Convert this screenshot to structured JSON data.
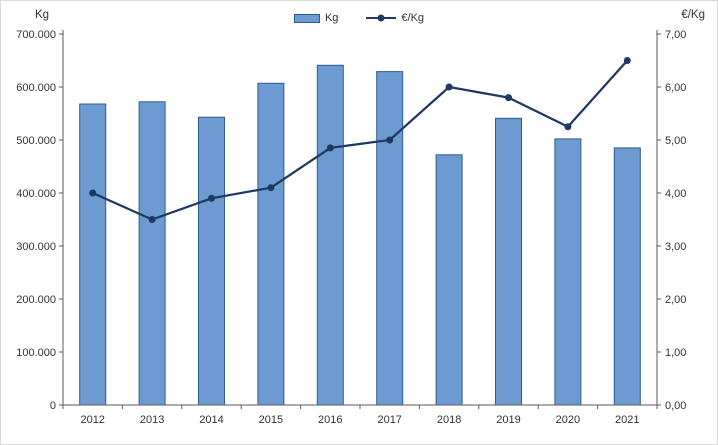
{
  "chart_data": {
    "type": "bar+line",
    "title": "",
    "categories": [
      "2012",
      "2013",
      "2014",
      "2015",
      "2016",
      "2017",
      "2018",
      "2019",
      "2020",
      "2021"
    ],
    "series": [
      {
        "name": "Kg",
        "type": "bar",
        "axis": "left",
        "values": [
          568000,
          572000,
          543000,
          607000,
          641000,
          629000,
          472000,
          541000,
          502000,
          485000
        ],
        "fill": "#6D9BD1",
        "stroke": "#2F5C8F"
      },
      {
        "name": "€/Kg",
        "type": "line",
        "axis": "right",
        "values": [
          4.0,
          3.5,
          3.9,
          4.1,
          4.85,
          5.0,
          6.0,
          5.8,
          5.25,
          6.5
        ],
        "color": "#1F3864"
      }
    ],
    "left_axis": {
      "title": "Kg",
      "min": 0,
      "max": 700000,
      "step": 100000,
      "tick_labels": [
        "0",
        "100.000",
        "200.000",
        "300.000",
        "400.000",
        "500.000",
        "600.000",
        "700.000"
      ]
    },
    "right_axis": {
      "title": "€/Kg",
      "min": 0,
      "max": 7,
      "step": 1,
      "tick_labels": [
        "0,00",
        "1,00",
        "2,00",
        "3,00",
        "4,00",
        "5,00",
        "6,00",
        "7,00"
      ]
    },
    "legend": [
      {
        "label": "Kg",
        "marker": "bar"
      },
      {
        "label": "€/Kg",
        "marker": "line"
      }
    ],
    "legend_position": "top-center",
    "grid": false,
    "colors": {
      "axis_line": "#595959",
      "tick_text": "#333333"
    }
  }
}
